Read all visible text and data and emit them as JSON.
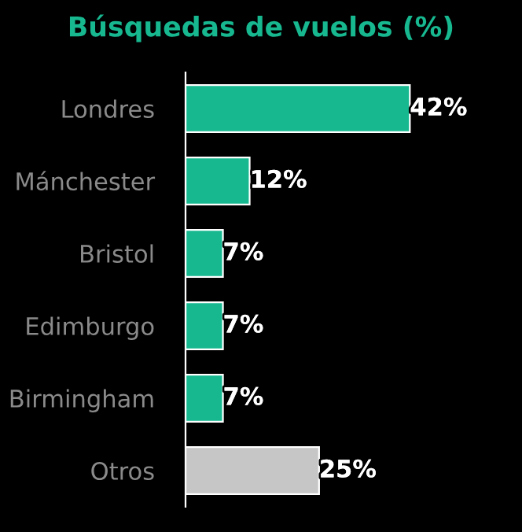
{
  "chart_data": {
    "type": "bar",
    "orientation": "horizontal",
    "title": "Búsquedas de vuelos (%)",
    "categories": [
      "Londres",
      "Mánchester",
      "Bristol",
      "Edimburgo",
      "Birmingham",
      "Otros"
    ],
    "values": [
      42,
      12,
      7,
      7,
      7,
      25
    ],
    "colors": [
      "#17b890",
      "#17b890",
      "#17b890",
      "#17b890",
      "#17b890",
      "#c6c6c6"
    ],
    "value_labels": [
      "42%",
      "12%",
      "7%",
      "7%",
      "7%",
      "25%"
    ],
    "tick_labels": "y",
    "grid": false,
    "legend": false
  }
}
